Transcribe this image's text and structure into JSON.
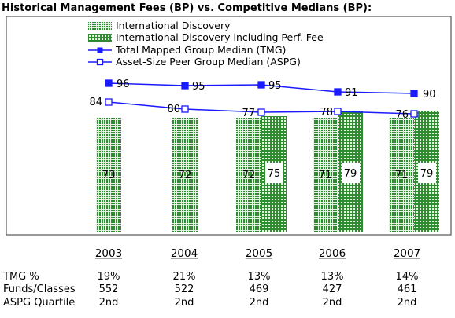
{
  "chart_data": {
    "type": "bar",
    "title": "Historical Management Fees (BP) vs. Competitive Medians (BP):",
    "categories": [
      "2003",
      "2004",
      "2005",
      "2006",
      "2007"
    ],
    "ylim": [
      0,
      100
    ],
    "series": [
      {
        "name": "International Discovery",
        "kind": "bar",
        "color": "#2e8b2e",
        "pattern": "dots",
        "values": [
          73,
          72,
          72,
          71,
          71
        ]
      },
      {
        "name": "International Discovery including Perf. Fee",
        "kind": "bar",
        "color": "#2e8b2e",
        "pattern": "grid",
        "values": [
          null,
          null,
          75,
          79,
          79
        ]
      },
      {
        "name": "Total Mapped Group Median (TMG)",
        "kind": "line",
        "color": "#1a1aff",
        "marker": "filled-square",
        "values": [
          96,
          95,
          95,
          91,
          90
        ]
      },
      {
        "name": "Asset-Size Peer Group Median (ASPG)",
        "kind": "line",
        "color": "#1a1aff",
        "marker": "open-square",
        "values": [
          84,
          80,
          77,
          78,
          76
        ]
      }
    ],
    "table": [
      {
        "label": "TMG %",
        "values": [
          "19%",
          "21%",
          "13%",
          "13%",
          "14%"
        ]
      },
      {
        "label": "Funds/Classes",
        "values": [
          "552",
          "522",
          "469",
          "427",
          "461"
        ]
      },
      {
        "label": "ASPG Quartile",
        "values": [
          "2nd",
          "2nd",
          "2nd",
          "2nd",
          "2nd"
        ]
      }
    ]
  }
}
